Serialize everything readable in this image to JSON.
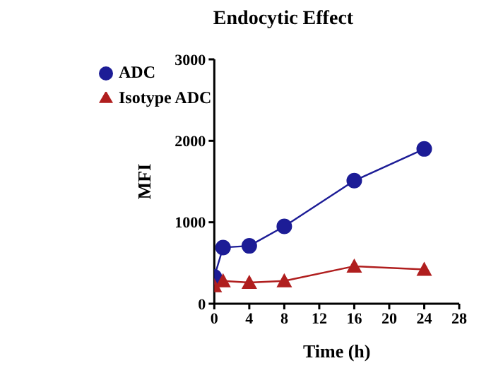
{
  "chart_data": {
    "type": "line",
    "title": "Endocytic Effect",
    "xlabel": "Time (h)",
    "ylabel": "MFI",
    "xlim": [
      0,
      28
    ],
    "xticks": [
      0,
      4,
      8,
      12,
      16,
      20,
      24,
      28
    ],
    "ylim": [
      0,
      3000
    ],
    "yticks": [
      0,
      1000,
      2000,
      3000
    ],
    "grid": false,
    "legend": "top left",
    "line_style": "solid",
    "x": [
      0,
      1,
      4,
      8,
      16,
      24
    ],
    "series": [
      {
        "name": "ADC",
        "color": "#1c1c96",
        "marker": "circle",
        "values": [
          330,
          690,
          710,
          950,
          1510,
          1900
        ]
      },
      {
        "name": "Isotype ADC",
        "color": "#b01e1e",
        "marker": "triangle",
        "values": [
          220,
          280,
          260,
          280,
          460,
          420
        ]
      }
    ]
  }
}
